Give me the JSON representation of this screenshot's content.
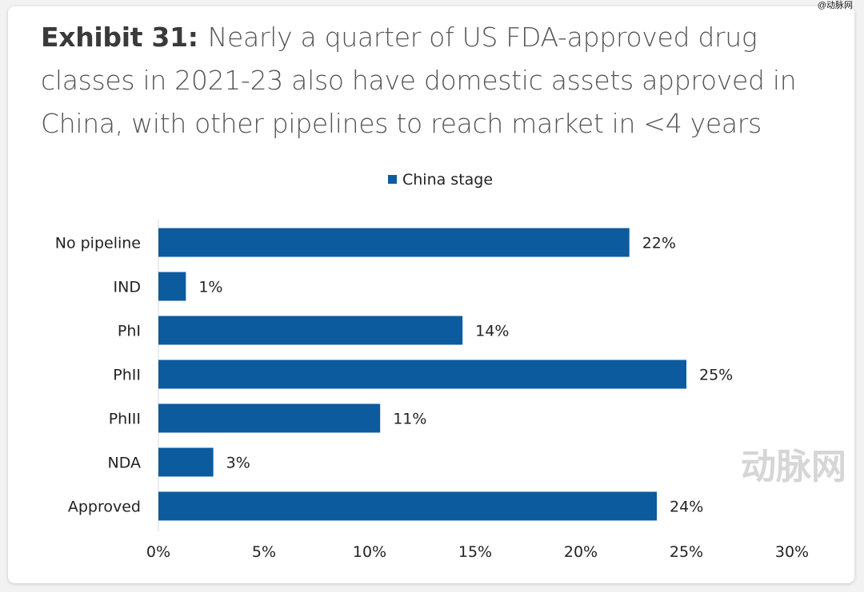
{
  "watermark_top": "@动脉网",
  "watermark_logo": "动脉网",
  "title": {
    "label": "Exhibit 31:",
    "text": "Nearly a quarter of US FDA-approved drug classes in 2021-23 also have domestic assets approved in China, with other pipelines to reach market in <4 years"
  },
  "chart_data": {
    "type": "bar",
    "orientation": "horizontal",
    "categories": [
      "No pipeline",
      "IND",
      "PhI",
      "PhII",
      "PhIII",
      "NDA",
      "Approved"
    ],
    "series": [
      {
        "name": "China stage",
        "values": [
          22.3,
          1.3,
          14.4,
          25.0,
          10.5,
          2.6,
          23.6
        ],
        "labels": [
          "22%",
          "1%",
          "14%",
          "25%",
          "11%",
          "3%",
          "24%"
        ],
        "color": "#0c5b9e"
      }
    ],
    "xlim": [
      0,
      30
    ],
    "xticks": [
      "0%",
      "5%",
      "10%",
      "15%",
      "20%",
      "25%",
      "30%"
    ],
    "grid": false,
    "legend": "top"
  }
}
